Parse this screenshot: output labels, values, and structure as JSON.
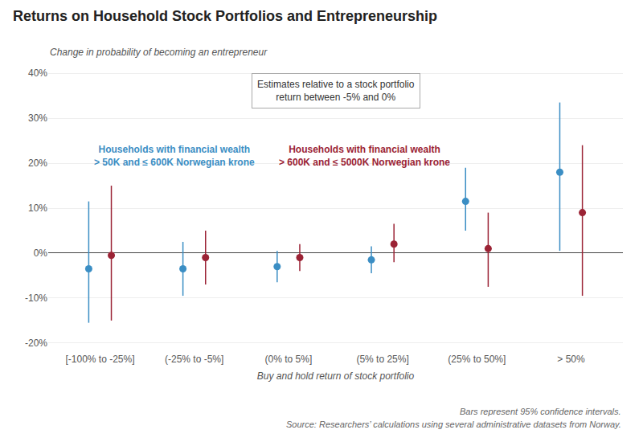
{
  "chart_data": {
    "type": "scatter",
    "title": "Returns on Household Stock Portfolios and Entrepreneurship",
    "ylabel": "Change in probability of becoming an entrepreneur",
    "xlabel": "Buy and hold return of stock portfolio",
    "annotation": "Estimates relative to a stock portfolio\nreturn between -5% and 0%",
    "footnotes": [
      "Bars represent 95% confidence intervals.",
      "Source: Researchers’ calculations using several administrative datasets from Norway."
    ],
    "categories": [
      "[-100% to -25%]",
      "(-25% to -5%]",
      "(0% to 5%]",
      "(5% to 25%]",
      "(25% to 50%]",
      "> 50%"
    ],
    "marker": "circle",
    "series": [
      {
        "name": "Households with financial wealth\n> 50K and ≤ 600K Norwegian krone",
        "color": "#3b8ec4",
        "values": [
          -3.5,
          -3.5,
          -3.0,
          -1.5,
          11.5,
          18.0
        ],
        "ci_low": [
          -15.5,
          -9.5,
          -6.5,
          -4.5,
          5.0,
          0.5
        ],
        "ci_high": [
          11.5,
          2.5,
          0.5,
          1.5,
          19.0,
          33.5
        ]
      },
      {
        "name": "Households with financial wealth\n> 600K and ≤ 5000K Norwegian krone",
        "color": "#9b2335",
        "values": [
          -0.5,
          -1.0,
          -1.0,
          2.0,
          1.0,
          9.0
        ],
        "ci_low": [
          -15.0,
          -7.0,
          -4.0,
          -2.0,
          -7.5,
          -9.5
        ],
        "ci_high": [
          15.0,
          5.0,
          2.0,
          6.5,
          9.0,
          24.0
        ]
      }
    ],
    "ylim": [
      -22,
      42
    ],
    "yticks": [
      {
        "value": -20,
        "label": "-20%"
      },
      {
        "value": -10,
        "label": "-10%"
      },
      {
        "value": 0,
        "label": "0%"
      },
      {
        "value": 10,
        "label": "10%"
      },
      {
        "value": 20,
        "label": "20%"
      },
      {
        "value": 30,
        "label": "30%"
      },
      {
        "value": 40,
        "label": "40%"
      }
    ],
    "grid": true
  }
}
